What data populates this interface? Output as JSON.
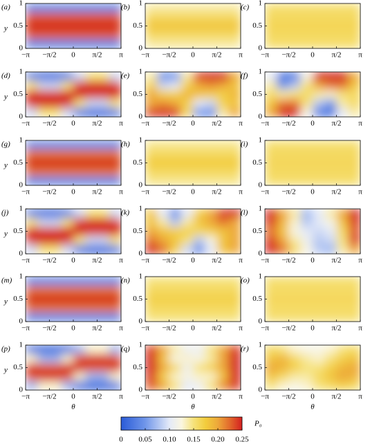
{
  "chart_data": {
    "type": "heatmap",
    "xlim": [
      -3.141592653589793,
      3.141592653589793
    ],
    "ylim": [
      0,
      1
    ],
    "xticks": [
      {
        "value": -3.141592653589793,
        "label": "−π"
      },
      {
        "value": -1.5707963267948966,
        "label": "−π/2"
      },
      0,
      {
        "value": 1.5707963267948966,
        "label": "π/2"
      },
      {
        "value": 3.141592653589793,
        "label": "π"
      }
    ],
    "yticks": [
      0,
      0.5,
      1
    ],
    "xlabel": "θ",
    "ylabel": "y",
    "clim": [
      0,
      0.25
    ],
    "colorbar_label": "P₀",
    "colorbar_ticks": [
      0,
      0.05,
      {
        "value": 0.1,
        "label": "0.10"
      },
      0.15,
      {
        "value": 0.2,
        "label": "0.20"
      },
      0.25
    ],
    "colormap": [
      [
        0,
        "#2a5bd7"
      ],
      [
        0.05,
        "#7096ea"
      ],
      [
        0.1,
        "#e4eaf8"
      ],
      [
        0.125,
        "#fbf6e0"
      ],
      [
        0.15,
        "#f6e27a"
      ],
      [
        0.175,
        "#f2cc3c"
      ],
      [
        0.2,
        "#eda83a"
      ],
      [
        0.225,
        "#e2682c"
      ],
      [
        0.25,
        "#d42020"
      ]
    ],
    "panels": [
      {
        "label": "(a)",
        "z": [
          [
            0.04,
            0.04,
            0.04,
            0.04,
            0.04,
            0.04,
            0.04,
            0.04
          ],
          [
            0.23,
            0.23,
            0.23,
            0.23,
            0.23,
            0.23,
            0.23,
            0.23
          ],
          [
            0.25,
            0.25,
            0.25,
            0.25,
            0.25,
            0.25,
            0.25,
            0.25
          ],
          [
            0.23,
            0.23,
            0.23,
            0.23,
            0.23,
            0.23,
            0.23,
            0.23
          ],
          [
            0.04,
            0.04,
            0.04,
            0.04,
            0.04,
            0.04,
            0.04,
            0.04
          ]
        ]
      },
      {
        "label": "(b)",
        "z": [
          [
            0.14,
            0.14,
            0.14,
            0.14,
            0.14,
            0.14,
            0.14,
            0.14
          ],
          [
            0.16,
            0.16,
            0.16,
            0.16,
            0.16,
            0.16,
            0.16,
            0.16
          ],
          [
            0.18,
            0.18,
            0.18,
            0.18,
            0.18,
            0.18,
            0.18,
            0.18
          ],
          [
            0.16,
            0.16,
            0.16,
            0.16,
            0.16,
            0.16,
            0.16,
            0.16
          ],
          [
            0.14,
            0.14,
            0.14,
            0.14,
            0.14,
            0.14,
            0.14,
            0.14
          ]
        ]
      },
      {
        "label": "(c)",
        "z": [
          [
            0.155,
            0.155,
            0.155,
            0.155,
            0.155,
            0.155,
            0.155,
            0.155
          ],
          [
            0.16,
            0.16,
            0.16,
            0.16,
            0.16,
            0.16,
            0.16,
            0.16
          ],
          [
            0.165,
            0.165,
            0.165,
            0.165,
            0.165,
            0.165,
            0.165,
            0.165
          ],
          [
            0.16,
            0.16,
            0.16,
            0.16,
            0.16,
            0.16,
            0.16,
            0.16
          ],
          [
            0.155,
            0.155,
            0.155,
            0.155,
            0.155,
            0.155,
            0.155,
            0.155
          ]
        ]
      },
      {
        "label": "(d)",
        "z": [
          [
            0.03,
            0.01,
            0.01,
            0.03,
            0.09,
            0.15,
            0.15,
            0.09
          ],
          [
            0.15,
            0.09,
            0.09,
            0.15,
            0.24,
            0.25,
            0.25,
            0.24
          ],
          [
            0.25,
            0.24,
            0.24,
            0.25,
            0.25,
            0.24,
            0.24,
            0.25
          ],
          [
            0.24,
            0.25,
            0.25,
            0.24,
            0.15,
            0.09,
            0.09,
            0.15
          ],
          [
            0.09,
            0.15,
            0.15,
            0.09,
            0.03,
            0.01,
            0.01,
            0.03
          ]
        ]
      },
      {
        "label": "(e)",
        "z": [
          [
            0.14,
            0.04,
            0.05,
            0.14,
            0.24,
            0.25,
            0.25,
            0.2
          ],
          [
            0.17,
            0.09,
            0.1,
            0.17,
            0.2,
            0.21,
            0.2,
            0.18
          ],
          [
            0.2,
            0.17,
            0.17,
            0.19,
            0.18,
            0.17,
            0.17,
            0.19
          ],
          [
            0.2,
            0.21,
            0.2,
            0.17,
            0.1,
            0.09,
            0.17,
            0.18
          ],
          [
            0.24,
            0.25,
            0.24,
            0.16,
            0.05,
            0.04,
            0.14,
            0.2
          ]
        ]
      },
      {
        "label": "(f)",
        "z": [
          [
            0.1,
            0.02,
            0.03,
            0.12,
            0.25,
            0.25,
            0.25,
            0.2
          ],
          [
            0.14,
            0.05,
            0.08,
            0.15,
            0.2,
            0.22,
            0.22,
            0.18
          ],
          [
            0.16,
            0.14,
            0.15,
            0.16,
            0.14,
            0.13,
            0.15,
            0.16
          ],
          [
            0.18,
            0.22,
            0.22,
            0.15,
            0.08,
            0.05,
            0.14,
            0.16
          ],
          [
            0.2,
            0.25,
            0.25,
            0.12,
            0.03,
            0.02,
            0.1,
            0.14
          ]
        ]
      },
      {
        "label": "(g)",
        "z": [
          [
            0.04,
            0.04,
            0.04,
            0.04,
            0.04,
            0.04,
            0.04,
            0.04
          ],
          [
            0.22,
            0.22,
            0.22,
            0.22,
            0.22,
            0.22,
            0.22,
            0.22
          ],
          [
            0.25,
            0.25,
            0.25,
            0.25,
            0.25,
            0.25,
            0.25,
            0.25
          ],
          [
            0.22,
            0.22,
            0.22,
            0.22,
            0.22,
            0.22,
            0.22,
            0.22
          ],
          [
            0.04,
            0.04,
            0.04,
            0.04,
            0.04,
            0.04,
            0.04,
            0.04
          ]
        ]
      },
      {
        "label": "(h)",
        "z": [
          [
            0.145,
            0.145,
            0.145,
            0.145,
            0.145,
            0.145,
            0.145,
            0.145
          ],
          [
            0.16,
            0.16,
            0.16,
            0.16,
            0.16,
            0.16,
            0.16,
            0.16
          ],
          [
            0.175,
            0.175,
            0.175,
            0.175,
            0.175,
            0.175,
            0.175,
            0.175
          ],
          [
            0.16,
            0.16,
            0.16,
            0.16,
            0.16,
            0.16,
            0.16,
            0.16
          ],
          [
            0.145,
            0.145,
            0.145,
            0.145,
            0.145,
            0.145,
            0.145,
            0.145
          ]
        ]
      },
      {
        "label": "(i)",
        "z": [
          [
            0.155,
            0.155,
            0.155,
            0.155,
            0.155,
            0.155,
            0.155,
            0.155
          ],
          [
            0.16,
            0.16,
            0.16,
            0.16,
            0.16,
            0.16,
            0.16,
            0.16
          ],
          [
            0.162,
            0.162,
            0.162,
            0.162,
            0.162,
            0.162,
            0.162,
            0.162
          ],
          [
            0.16,
            0.16,
            0.16,
            0.16,
            0.16,
            0.16,
            0.16,
            0.16
          ],
          [
            0.155,
            0.155,
            0.155,
            0.155,
            0.155,
            0.155,
            0.155,
            0.155
          ]
        ]
      },
      {
        "label": "(j)",
        "z": [
          [
            0.03,
            0.01,
            0.01,
            0.03,
            0.09,
            0.15,
            0.15,
            0.09
          ],
          [
            0.15,
            0.09,
            0.09,
            0.15,
            0.24,
            0.25,
            0.25,
            0.24
          ],
          [
            0.25,
            0.24,
            0.24,
            0.25,
            0.25,
            0.24,
            0.24,
            0.25
          ],
          [
            0.24,
            0.25,
            0.25,
            0.24,
            0.15,
            0.09,
            0.09,
            0.15
          ],
          [
            0.09,
            0.15,
            0.15,
            0.09,
            0.03,
            0.01,
            0.01,
            0.03
          ]
        ]
      },
      {
        "label": "(k)",
        "z": [
          [
            0.18,
            0.1,
            0.04,
            0.1,
            0.17,
            0.2,
            0.24,
            0.25
          ],
          [
            0.18,
            0.14,
            0.08,
            0.14,
            0.18,
            0.2,
            0.22,
            0.2
          ],
          [
            0.2,
            0.18,
            0.17,
            0.17,
            0.16,
            0.17,
            0.18,
            0.2
          ],
          [
            0.22,
            0.2,
            0.18,
            0.15,
            0.08,
            0.12,
            0.18,
            0.2
          ],
          [
            0.25,
            0.22,
            0.17,
            0.09,
            0.04,
            0.1,
            0.18,
            0.2
          ]
        ]
      },
      {
        "label": "(l)",
        "z": [
          [
            0.25,
            0.2,
            0.14,
            0.07,
            0.1,
            0.14,
            0.2,
            0.25
          ],
          [
            0.24,
            0.19,
            0.13,
            0.08,
            0.1,
            0.12,
            0.18,
            0.24
          ],
          [
            0.22,
            0.18,
            0.12,
            0.1,
            0.09,
            0.1,
            0.16,
            0.23
          ],
          [
            0.24,
            0.2,
            0.14,
            0.11,
            0.08,
            0.09,
            0.15,
            0.24
          ],
          [
            0.25,
            0.22,
            0.16,
            0.12,
            0.08,
            0.07,
            0.14,
            0.2
          ]
        ]
      },
      {
        "label": "(m)",
        "z": [
          [
            0.04,
            0.04,
            0.04,
            0.04,
            0.04,
            0.04,
            0.04,
            0.04
          ],
          [
            0.22,
            0.22,
            0.22,
            0.22,
            0.22,
            0.22,
            0.22,
            0.22
          ],
          [
            0.25,
            0.25,
            0.25,
            0.25,
            0.25,
            0.25,
            0.25,
            0.25
          ],
          [
            0.22,
            0.22,
            0.22,
            0.22,
            0.22,
            0.22,
            0.22,
            0.22
          ],
          [
            0.04,
            0.04,
            0.04,
            0.04,
            0.04,
            0.04,
            0.04,
            0.04
          ]
        ]
      },
      {
        "label": "(n)",
        "z": [
          [
            0.15,
            0.15,
            0.15,
            0.15,
            0.15,
            0.15,
            0.15,
            0.15
          ],
          [
            0.16,
            0.16,
            0.16,
            0.16,
            0.16,
            0.16,
            0.16,
            0.16
          ],
          [
            0.17,
            0.17,
            0.17,
            0.17,
            0.17,
            0.17,
            0.17,
            0.17
          ],
          [
            0.16,
            0.16,
            0.16,
            0.16,
            0.16,
            0.16,
            0.16,
            0.16
          ],
          [
            0.15,
            0.15,
            0.15,
            0.15,
            0.15,
            0.15,
            0.15,
            0.15
          ]
        ]
      },
      {
        "label": "(o)",
        "z": [
          [
            0.155,
            0.155,
            0.155,
            0.155,
            0.155,
            0.155,
            0.155,
            0.155
          ],
          [
            0.158,
            0.158,
            0.158,
            0.158,
            0.158,
            0.158,
            0.158,
            0.158
          ],
          [
            0.162,
            0.162,
            0.162,
            0.162,
            0.162,
            0.162,
            0.162,
            0.162
          ],
          [
            0.158,
            0.158,
            0.158,
            0.158,
            0.158,
            0.158,
            0.158,
            0.158
          ],
          [
            0.155,
            0.155,
            0.155,
            0.155,
            0.155,
            0.155,
            0.155,
            0.155
          ]
        ]
      },
      {
        "label": "(p)",
        "z": [
          [
            0.02,
            0.01,
            0.01,
            0.02,
            0.07,
            0.13,
            0.13,
            0.07
          ],
          [
            0.13,
            0.07,
            0.07,
            0.13,
            0.23,
            0.25,
            0.25,
            0.23
          ],
          [
            0.25,
            0.23,
            0.23,
            0.25,
            0.25,
            0.23,
            0.23,
            0.25
          ],
          [
            0.23,
            0.25,
            0.25,
            0.23,
            0.13,
            0.07,
            0.07,
            0.13
          ],
          [
            0.07,
            0.13,
            0.13,
            0.07,
            0.02,
            0.01,
            0.01,
            0.02
          ]
        ]
      },
      {
        "label": "(q)",
        "z": [
          [
            0.24,
            0.2,
            0.14,
            0.11,
            0.11,
            0.15,
            0.2,
            0.24
          ],
          [
            0.25,
            0.18,
            0.12,
            0.13,
            0.12,
            0.14,
            0.2,
            0.25
          ],
          [
            0.25,
            0.2,
            0.16,
            0.11,
            0.15,
            0.17,
            0.2,
            0.25
          ],
          [
            0.24,
            0.17,
            0.13,
            0.12,
            0.13,
            0.13,
            0.18,
            0.25
          ],
          [
            0.23,
            0.2,
            0.15,
            0.1,
            0.11,
            0.15,
            0.21,
            0.24
          ]
        ]
      },
      {
        "label": "(r)",
        "z": [
          [
            0.16,
            0.15,
            0.13,
            0.12,
            0.12,
            0.13,
            0.15,
            0.16
          ],
          [
            0.18,
            0.19,
            0.16,
            0.14,
            0.13,
            0.15,
            0.17,
            0.18
          ],
          [
            0.2,
            0.19,
            0.17,
            0.15,
            0.15,
            0.17,
            0.19,
            0.2
          ],
          [
            0.18,
            0.16,
            0.14,
            0.14,
            0.16,
            0.18,
            0.2,
            0.19
          ],
          [
            0.15,
            0.13,
            0.12,
            0.13,
            0.15,
            0.16,
            0.17,
            0.16
          ]
        ]
      }
    ]
  }
}
